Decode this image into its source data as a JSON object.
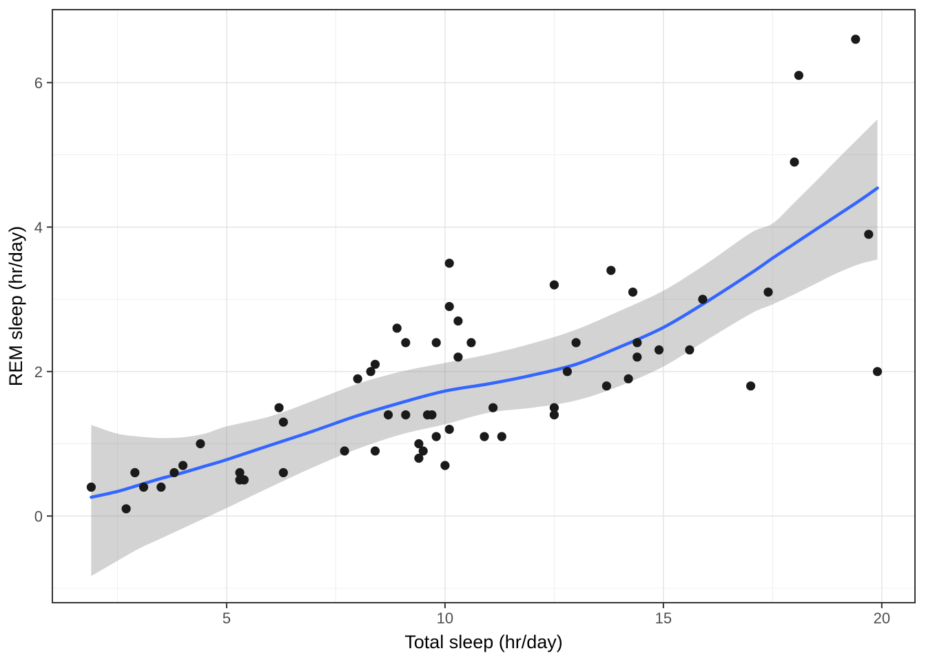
{
  "chart_data": {
    "type": "scatter",
    "title": "",
    "xlabel": "Total sleep (hr/day)",
    "ylabel": "REM sleep (hr/day)",
    "legend": "none",
    "grid": true,
    "x_domain": [
      1.01,
      20.76
    ],
    "y_domain": [
      -1.2,
      7.01
    ],
    "x_ticks": [
      5,
      10,
      15,
      20
    ],
    "y_ticks": [
      0,
      2,
      4,
      6
    ],
    "x_minor_ticks": [
      2.5,
      7.5,
      12.5,
      17.5
    ],
    "y_minor_ticks": [
      -1,
      1,
      3,
      5
    ],
    "points": [
      [
        1.9,
        0.4
      ],
      [
        2.7,
        0.1
      ],
      [
        2.9,
        0.6
      ],
      [
        3.1,
        0.4
      ],
      [
        3.5,
        0.4
      ],
      [
        3.8,
        0.6
      ],
      [
        4.0,
        0.7
      ],
      [
        4.4,
        1.0
      ],
      [
        5.3,
        0.5
      ],
      [
        5.3,
        0.6
      ],
      [
        5.4,
        0.5
      ],
      [
        6.2,
        1.5
      ],
      [
        6.3,
        0.6
      ],
      [
        6.3,
        1.3
      ],
      [
        7.7,
        0.9
      ],
      [
        8.0,
        1.9
      ],
      [
        8.3,
        2.0
      ],
      [
        8.4,
        0.9
      ],
      [
        8.4,
        2.1
      ],
      [
        8.7,
        1.4
      ],
      [
        8.9,
        2.6
      ],
      [
        9.1,
        1.4
      ],
      [
        9.1,
        2.4
      ],
      [
        9.4,
        0.8
      ],
      [
        9.4,
        1.0
      ],
      [
        9.5,
        0.9
      ],
      [
        9.6,
        1.4
      ],
      [
        9.7,
        1.4
      ],
      [
        9.8,
        1.1
      ],
      [
        9.8,
        2.4
      ],
      [
        10.0,
        0.7
      ],
      [
        10.1,
        1.2
      ],
      [
        10.1,
        2.9
      ],
      [
        10.1,
        3.5
      ],
      [
        10.3,
        2.2
      ],
      [
        10.3,
        2.7
      ],
      [
        10.6,
        2.4
      ],
      [
        10.9,
        1.1
      ],
      [
        11.1,
        1.5
      ],
      [
        11.3,
        1.1
      ],
      [
        12.5,
        1.4
      ],
      [
        12.5,
        1.5
      ],
      [
        12.5,
        3.2
      ],
      [
        12.8,
        2.0
      ],
      [
        13.0,
        2.4
      ],
      [
        13.7,
        1.8
      ],
      [
        13.8,
        3.4
      ],
      [
        14.2,
        1.9
      ],
      [
        14.3,
        3.1
      ],
      [
        14.4,
        2.2
      ],
      [
        14.4,
        2.4
      ],
      [
        14.9,
        2.3
      ],
      [
        15.6,
        2.3
      ],
      [
        15.9,
        3.0
      ],
      [
        17.0,
        1.8
      ],
      [
        17.4,
        3.1
      ],
      [
        18.0,
        4.9
      ],
      [
        18.1,
        6.1
      ],
      [
        19.4,
        6.6
      ],
      [
        19.7,
        3.9
      ],
      [
        19.9,
        2.0
      ]
    ],
    "smooth": {
      "method": "loess",
      "x": [
        1.9,
        2.5,
        3.0,
        3.5,
        4.0,
        4.5,
        5.0,
        6.0,
        7.0,
        8.0,
        9.0,
        10.0,
        11.0,
        12.0,
        13.0,
        14.0,
        15.0,
        16.0,
        17.0,
        17.5,
        18.0,
        18.5,
        19.0,
        19.5,
        19.9
      ],
      "line": [
        0.26,
        0.34,
        0.43,
        0.52,
        0.6,
        0.69,
        0.78,
        0.98,
        1.18,
        1.39,
        1.57,
        1.73,
        1.83,
        1.95,
        2.1,
        2.34,
        2.61,
        2.97,
        3.36,
        3.57,
        3.77,
        3.97,
        4.17,
        4.37,
        4.54
      ],
      "lower": [
        -0.83,
        -0.62,
        -0.45,
        -0.31,
        -0.17,
        -0.03,
        0.11,
        0.4,
        0.68,
        0.93,
        1.13,
        1.27,
        1.43,
        1.5,
        1.6,
        1.8,
        2.07,
        2.44,
        2.8,
        2.93,
        3.07,
        3.22,
        3.37,
        3.49,
        3.55
      ],
      "upper": [
        1.26,
        1.14,
        1.1,
        1.08,
        1.09,
        1.14,
        1.24,
        1.38,
        1.6,
        1.83,
        2.0,
        2.12,
        2.24,
        2.39,
        2.58,
        2.84,
        3.12,
        3.5,
        3.92,
        4.05,
        4.34,
        4.64,
        4.95,
        5.25,
        5.49
      ]
    },
    "style": {
      "marker_radius": 6.6,
      "line_width": 4.5,
      "colors": {
        "background": "#FFFFFF",
        "point": "#1A1A1A",
        "line": "#3366FF",
        "ribbon": "#8C8C8C",
        "ribbon_opacity": 0.38,
        "grid_major": "#E2E2E2",
        "grid_minor": "#ECECEC",
        "panel_border": "#333333",
        "tick_mark": "#333333",
        "tick_label": "#4D4D4D",
        "axis_title": "#000000"
      }
    }
  }
}
